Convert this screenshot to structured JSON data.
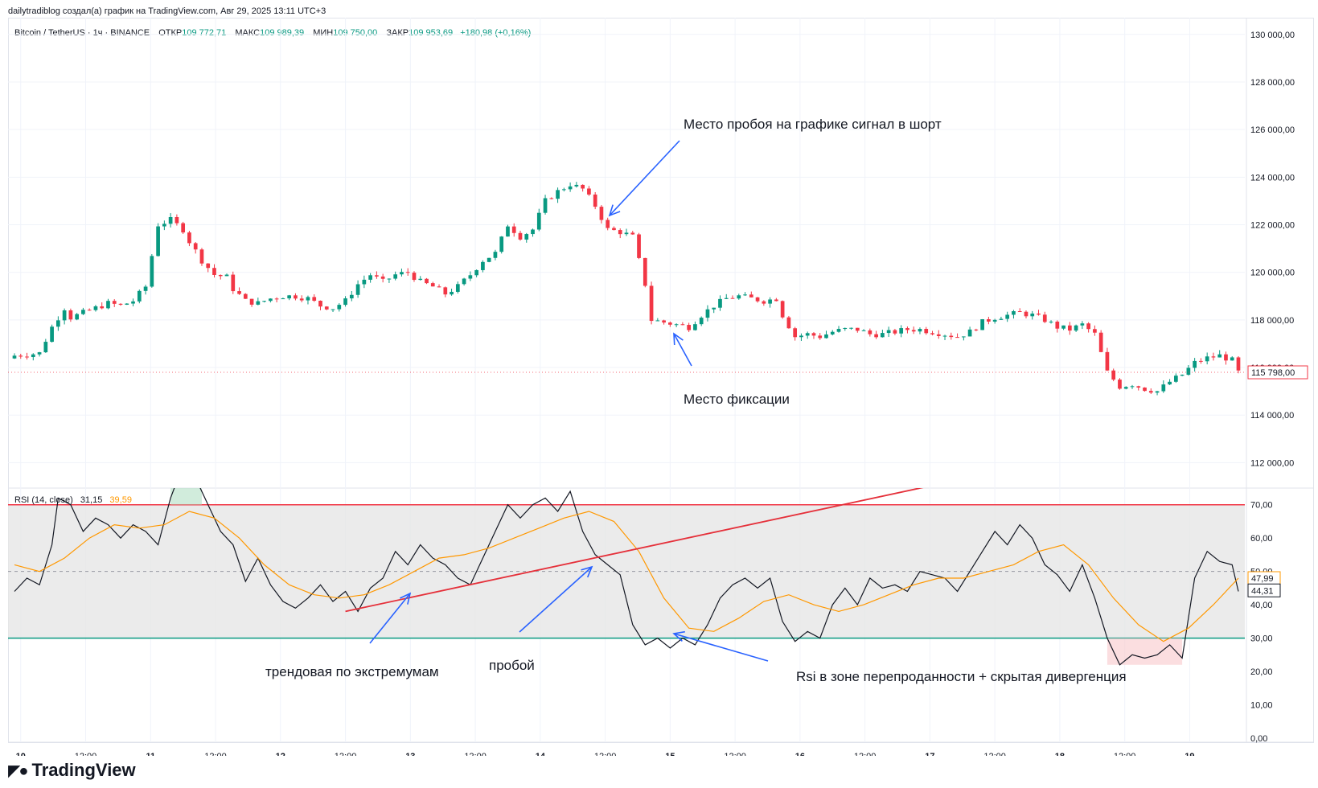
{
  "header": {
    "attribution": "dailytradiblog создал(а) график на TradingView.com, Авг 29, 2025 13:11 UTC+3"
  },
  "legend": {
    "symbol": "Bitcoin / TetherUS · 1ч · BINANCE",
    "open_label": "ОТКР",
    "open": "109 772,71",
    "high_label": "МАКС",
    "high": "109 989,39",
    "low_label": "МИН",
    "low": "109 750,00",
    "close_label": "ЗАКР",
    "close": "109 953,69",
    "change": "+180,98 (+0,16%)"
  },
  "rsi_legend": {
    "title": "RSI (14, close)",
    "value": "31,15",
    "ma": "39,59"
  },
  "price_badge": "115 798,00",
  "rsi_badges": {
    "ma": "47,99",
    "rsi": "44,31"
  },
  "annotations": {
    "short_signal": "Место пробоя на графике сигнал в шорт",
    "fix_place": "Место фиксации",
    "trendline": "трендовая по экстремумам",
    "breakout": "пробой",
    "rsi_note": "Rsi в зоне перепроданности + скрытая дивергенция"
  },
  "logo": {
    "text": "TradingView"
  },
  "colors": {
    "up": "#089981",
    "down": "#f23645",
    "rsi": "#131722",
    "rsi_ma": "#ff9800",
    "band": "#e6e6e6",
    "upper": "#f23645",
    "lower": "#089981",
    "arrow": "#2962ff",
    "trend": "#e5303a"
  },
  "chart_data": [
    {
      "type": "candlestick",
      "title": "Bitcoin / TetherUS · 1ч · BINANCE",
      "price_ticks": [
        112000,
        114000,
        116000,
        118000,
        120000,
        122000,
        124000,
        126000,
        128000,
        130000
      ],
      "price_tick_labels": [
        "112 000,00",
        "114 000,00",
        "116 000,00",
        "118 000,00",
        "120 000,00",
        "122 000,00",
        "124 000,00",
        "126 000,00",
        "128 000,00",
        "130 000,00"
      ],
      "ylim": [
        111000,
        130500
      ],
      "x_tick_labels": [
        "10",
        "12:00",
        "11",
        "12:00",
        "12",
        "12:00",
        "13",
        "12:00",
        "14",
        "12:00",
        "15",
        "12:00",
        "16",
        "12:00",
        "17",
        "12:00",
        "18",
        "12:00",
        "19"
      ],
      "close_path": [
        [
          0,
          116500
        ],
        [
          4,
          116600
        ],
        [
          6,
          117700
        ],
        [
          8,
          118500
        ],
        [
          9,
          118100
        ],
        [
          11,
          118300
        ],
        [
          13,
          118500
        ],
        [
          15,
          118700
        ],
        [
          17,
          118600
        ],
        [
          19,
          118800
        ],
        [
          21,
          119400
        ],
        [
          23,
          122000
        ],
        [
          25,
          122200
        ],
        [
          27,
          121800
        ],
        [
          28,
          121300
        ],
        [
          30,
          120500
        ],
        [
          32,
          119900
        ],
        [
          34,
          119800
        ],
        [
          35,
          119300
        ],
        [
          37,
          118800
        ],
        [
          39,
          118700
        ],
        [
          41,
          118900
        ],
        [
          43,
          119000
        ],
        [
          45,
          119000
        ],
        [
          47,
          118900
        ],
        [
          49,
          118600
        ],
        [
          51,
          118500
        ],
        [
          53,
          118800
        ],
        [
          55,
          119500
        ],
        [
          57,
          119900
        ],
        [
          59,
          119600
        ],
        [
          61,
          119900
        ],
        [
          63,
          120000
        ],
        [
          65,
          119600
        ],
        [
          67,
          119400
        ],
        [
          69,
          119100
        ],
        [
          71,
          119400
        ],
        [
          73,
          119900
        ],
        [
          75,
          120500
        ],
        [
          77,
          120800
        ],
        [
          79,
          122000
        ],
        [
          81,
          121500
        ],
        [
          83,
          121800
        ],
        [
          85,
          123000
        ],
        [
          87,
          123400
        ],
        [
          89,
          123700
        ],
        [
          91,
          123500
        ],
        [
          93,
          122800
        ],
        [
          95,
          121800
        ],
        [
          97,
          121700
        ],
        [
          99,
          121500
        ],
        [
          101,
          119500
        ],
        [
          102,
          118000
        ],
        [
          104,
          117900
        ],
        [
          106,
          117800
        ],
        [
          108,
          117700
        ],
        [
          110,
          118200
        ],
        [
          112,
          118600
        ],
        [
          114,
          118900
        ],
        [
          116,
          119000
        ],
        [
          118,
          118900
        ],
        [
          120,
          118800
        ],
        [
          122,
          118900
        ],
        [
          123,
          118200
        ],
        [
          125,
          117300
        ],
        [
          127,
          117400
        ],
        [
          129,
          117300
        ],
        [
          131,
          117500
        ],
        [
          133,
          117600
        ],
        [
          135,
          117600
        ],
        [
          137,
          117400
        ],
        [
          139,
          117400
        ],
        [
          141,
          117500
        ],
        [
          143,
          117600
        ],
        [
          145,
          117600
        ],
        [
          147,
          117500
        ],
        [
          149,
          117400
        ],
        [
          151,
          117300
        ],
        [
          153,
          117500
        ],
        [
          155,
          117900
        ],
        [
          157,
          118100
        ],
        [
          159,
          118200
        ],
        [
          161,
          118300
        ],
        [
          163,
          118200
        ],
        [
          165,
          118000
        ],
        [
          167,
          117700
        ],
        [
          169,
          117600
        ],
        [
          171,
          117800
        ],
        [
          173,
          117400
        ],
        [
          175,
          115800
        ],
        [
          177,
          115200
        ],
        [
          179,
          115300
        ],
        [
          181,
          115100
        ],
        [
          183,
          115000
        ],
        [
          185,
          115400
        ],
        [
          187,
          115700
        ],
        [
          189,
          116200
        ],
        [
          191,
          116400
        ],
        [
          193,
          116500
        ],
        [
          195,
          116300
        ],
        [
          196,
          115800
        ]
      ]
    },
    {
      "type": "line",
      "title": "RSI (14, close)",
      "ylim": [
        0,
        75
      ],
      "y_ticks": [
        0,
        10,
        20,
        30,
        40,
        50,
        60,
        70
      ],
      "y_tick_labels": [
        "0,00",
        "10,00",
        "20,00",
        "30,00",
        "40,00",
        "50,00",
        "60,00",
        "70,00"
      ],
      "bands": {
        "upper": 70,
        "lower": 30,
        "middle": 50
      },
      "series": [
        {
          "name": "RSI",
          "points": [
            [
              0,
              44
            ],
            [
              2,
              48
            ],
            [
              4,
              46
            ],
            [
              6,
              58
            ],
            [
              7,
              72
            ],
            [
              9,
              70
            ],
            [
              11,
              62
            ],
            [
              13,
              66
            ],
            [
              15,
              64
            ],
            [
              17,
              60
            ],
            [
              19,
              64
            ],
            [
              21,
              62
            ],
            [
              23,
              58
            ],
            [
              25,
              72
            ],
            [
              27,
              82
            ],
            [
              29,
              78
            ],
            [
              31,
              70
            ],
            [
              33,
              62
            ],
            [
              35,
              58
            ],
            [
              37,
              47
            ],
            [
              39,
              54
            ],
            [
              41,
              46
            ],
            [
              43,
              41
            ],
            [
              45,
              39
            ],
            [
              47,
              42
            ],
            [
              49,
              46
            ],
            [
              51,
              41
            ],
            [
              53,
              44
            ],
            [
              55,
              38
            ],
            [
              57,
              45
            ],
            [
              59,
              48
            ],
            [
              61,
              56
            ],
            [
              63,
              52
            ],
            [
              65,
              58
            ],
            [
              67,
              54
            ],
            [
              69,
              52
            ],
            [
              71,
              48
            ],
            [
              73,
              46
            ],
            [
              75,
              54
            ],
            [
              77,
              62
            ],
            [
              79,
              70
            ],
            [
              81,
              66
            ],
            [
              83,
              70
            ],
            [
              85,
              72
            ],
            [
              87,
              68
            ],
            [
              89,
              74
            ],
            [
              91,
              62
            ],
            [
              93,
              55
            ],
            [
              95,
              52
            ],
            [
              97,
              49
            ],
            [
              99,
              34
            ],
            [
              101,
              28
            ],
            [
              103,
              30
            ],
            [
              105,
              27
            ],
            [
              107,
              30
            ],
            [
              109,
              28
            ],
            [
              111,
              34
            ],
            [
              113,
              42
            ],
            [
              115,
              46
            ],
            [
              117,
              48
            ],
            [
              119,
              45
            ],
            [
              121,
              48
            ],
            [
              123,
              35
            ],
            [
              125,
              29
            ],
            [
              127,
              32
            ],
            [
              129,
              30
            ],
            [
              131,
              40
            ],
            [
              133,
              45
            ],
            [
              135,
              40
            ],
            [
              137,
              48
            ],
            [
              139,
              45
            ],
            [
              141,
              46
            ],
            [
              143,
              44
            ],
            [
              145,
              50
            ],
            [
              147,
              49
            ],
            [
              149,
              48
            ],
            [
              151,
              44
            ],
            [
              153,
              50
            ],
            [
              155,
              56
            ],
            [
              157,
              62
            ],
            [
              159,
              58
            ],
            [
              161,
              64
            ],
            [
              163,
              60
            ],
            [
              165,
              52
            ],
            [
              167,
              49
            ],
            [
              169,
              44
            ],
            [
              171,
              52
            ],
            [
              173,
              42
            ],
            [
              175,
              30
            ],
            [
              177,
              22
            ],
            [
              179,
              25
            ],
            [
              181,
              24
            ],
            [
              183,
              25
            ],
            [
              185,
              28
            ],
            [
              187,
              24
            ],
            [
              189,
              48
            ],
            [
              191,
              56
            ],
            [
              193,
              53
            ],
            [
              195,
              52
            ],
            [
              196,
              44
            ]
          ]
        },
        {
          "name": "RSI MA",
          "points": [
            [
              0,
              52
            ],
            [
              4,
              50
            ],
            [
              8,
              54
            ],
            [
              12,
              60
            ],
            [
              16,
              64
            ],
            [
              20,
              63
            ],
            [
              24,
              64
            ],
            [
              28,
              68
            ],
            [
              32,
              66
            ],
            [
              36,
              60
            ],
            [
              40,
              52
            ],
            [
              44,
              46
            ],
            [
              48,
              43
            ],
            [
              52,
              42
            ],
            [
              56,
              43
            ],
            [
              60,
              46
            ],
            [
              64,
              50
            ],
            [
              68,
              54
            ],
            [
              72,
              55
            ],
            [
              76,
              57
            ],
            [
              80,
              60
            ],
            [
              84,
              63
            ],
            [
              88,
              66
            ],
            [
              92,
              68
            ],
            [
              96,
              65
            ],
            [
              100,
              56
            ],
            [
              104,
              42
            ],
            [
              108,
              33
            ],
            [
              112,
              32
            ],
            [
              116,
              36
            ],
            [
              120,
              41
            ],
            [
              124,
              43
            ],
            [
              128,
              40
            ],
            [
              132,
              38
            ],
            [
              136,
              40
            ],
            [
              140,
              43
            ],
            [
              144,
              46
            ],
            [
              148,
              48
            ],
            [
              152,
              48
            ],
            [
              156,
              50
            ],
            [
              160,
              52
            ],
            [
              164,
              56
            ],
            [
              168,
              58
            ],
            [
              172,
              52
            ],
            [
              176,
              42
            ],
            [
              180,
              34
            ],
            [
              184,
              29
            ],
            [
              188,
              33
            ],
            [
              192,
              40
            ],
            [
              196,
              48
            ]
          ]
        }
      ]
    }
  ]
}
